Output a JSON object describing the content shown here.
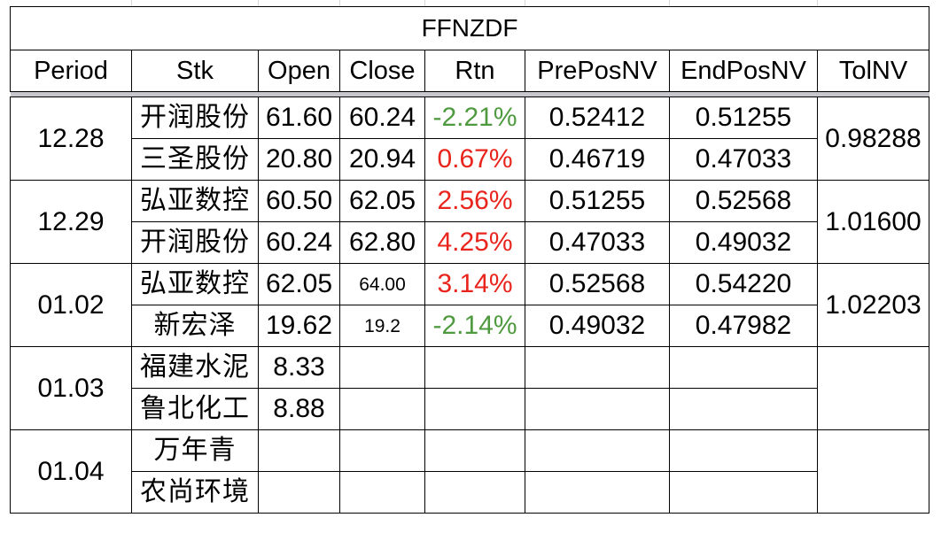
{
  "title": "FFNZDF",
  "headers": {
    "period": "Period",
    "stk": "Stk",
    "open": "Open",
    "close": "Close",
    "rtn": "Rtn",
    "prepos": "PrePosNV",
    "endpos": "EndPosNV",
    "tol": "TolNV"
  },
  "colors": {
    "negative": "#4f9a3f",
    "positive": "#e8241c",
    "separator": "#c6c6cc"
  },
  "groups": [
    {
      "period": "12.28",
      "tol": "0.98288",
      "rows": [
        {
          "stk": "开润股份",
          "open": "61.60",
          "close": "60.24",
          "rtn": "-2.21%",
          "prepos": "0.52412",
          "endpos": "0.51255"
        },
        {
          "stk": "三圣股份",
          "open": "20.80",
          "close": "20.94",
          "rtn": "0.67%",
          "prepos": "0.46719",
          "endpos": "0.47033"
        }
      ]
    },
    {
      "period": "12.29",
      "tol": "1.01600",
      "rows": [
        {
          "stk": "弘亚数控",
          "open": "60.50",
          "close": "62.05",
          "rtn": "2.56%",
          "prepos": "0.51255",
          "endpos": "0.52568"
        },
        {
          "stk": "开润股份",
          "open": "60.24",
          "close": "62.80",
          "rtn": "4.25%",
          "prepos": "0.47033",
          "endpos": "0.49032"
        }
      ]
    },
    {
      "period": "01.02",
      "tol": "1.02203",
      "rows": [
        {
          "stk": "弘亚数控",
          "open": "62.05",
          "close": "64.00",
          "rtn": "3.14%",
          "prepos": "0.52568",
          "endpos": "0.54220"
        },
        {
          "stk": "新宏泽",
          "open": "19.62",
          "close": "19.2",
          "rtn": "-2.14%",
          "prepos": "0.49032",
          "endpos": "0.47982"
        }
      ]
    },
    {
      "period": "01.03",
      "tol": "",
      "rows": [
        {
          "stk": "福建水泥",
          "open": "8.33",
          "close": "",
          "rtn": "",
          "prepos": "",
          "endpos": ""
        },
        {
          "stk": "鲁北化工",
          "open": "8.88",
          "close": "",
          "rtn": "",
          "prepos": "",
          "endpos": ""
        }
      ]
    },
    {
      "period": "01.04",
      "tol": "",
      "rows": [
        {
          "stk": "万年青",
          "open": "",
          "close": "",
          "rtn": "",
          "prepos": "",
          "endpos": ""
        },
        {
          "stk": "农尚环境",
          "open": "",
          "close": "",
          "rtn": "",
          "prepos": "",
          "endpos": ""
        }
      ]
    }
  ]
}
